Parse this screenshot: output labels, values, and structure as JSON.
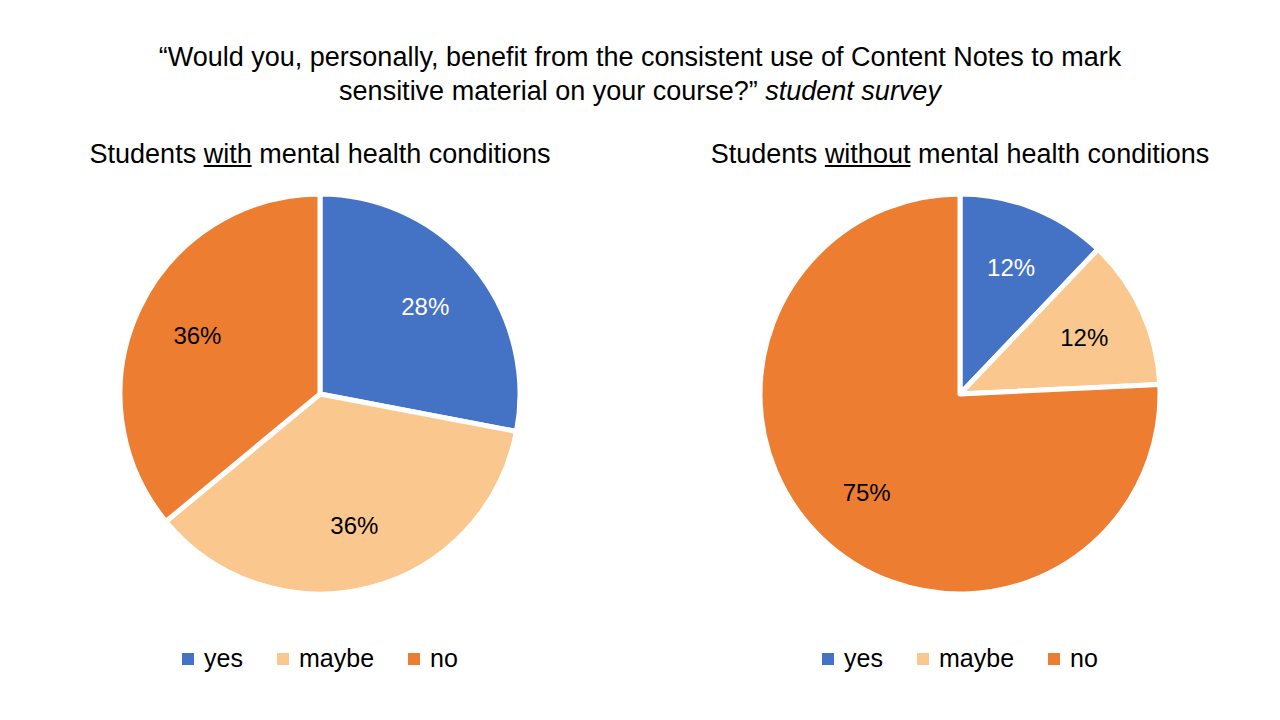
{
  "title": "“Would you, personally, benefit from the consistent use of Content Notes to mark sensitive material on your course?”",
  "subtitle": "student survey",
  "chart_data": [
    {
      "type": "pie",
      "title": "Students with mental health conditions",
      "categories": [
        "yes",
        "maybe",
        "no"
      ],
      "values": [
        28,
        36,
        36
      ],
      "value_labels": [
        "28%",
        "36%",
        "36%"
      ],
      "colors": [
        "#4472c4",
        "#fac88e",
        "#ed7d31"
      ],
      "data_labels": true,
      "legend": "bottom"
    },
    {
      "type": "pie",
      "title": "Students without mental health conditions",
      "categories": [
        "yes",
        "maybe",
        "no"
      ],
      "values": [
        12,
        12,
        75
      ],
      "value_labels": [
        "12%",
        "12%",
        "75%"
      ],
      "colors": [
        "#4472c4",
        "#fac88e",
        "#ed7d31"
      ],
      "data_labels": true,
      "legend": "bottom"
    }
  ]
}
